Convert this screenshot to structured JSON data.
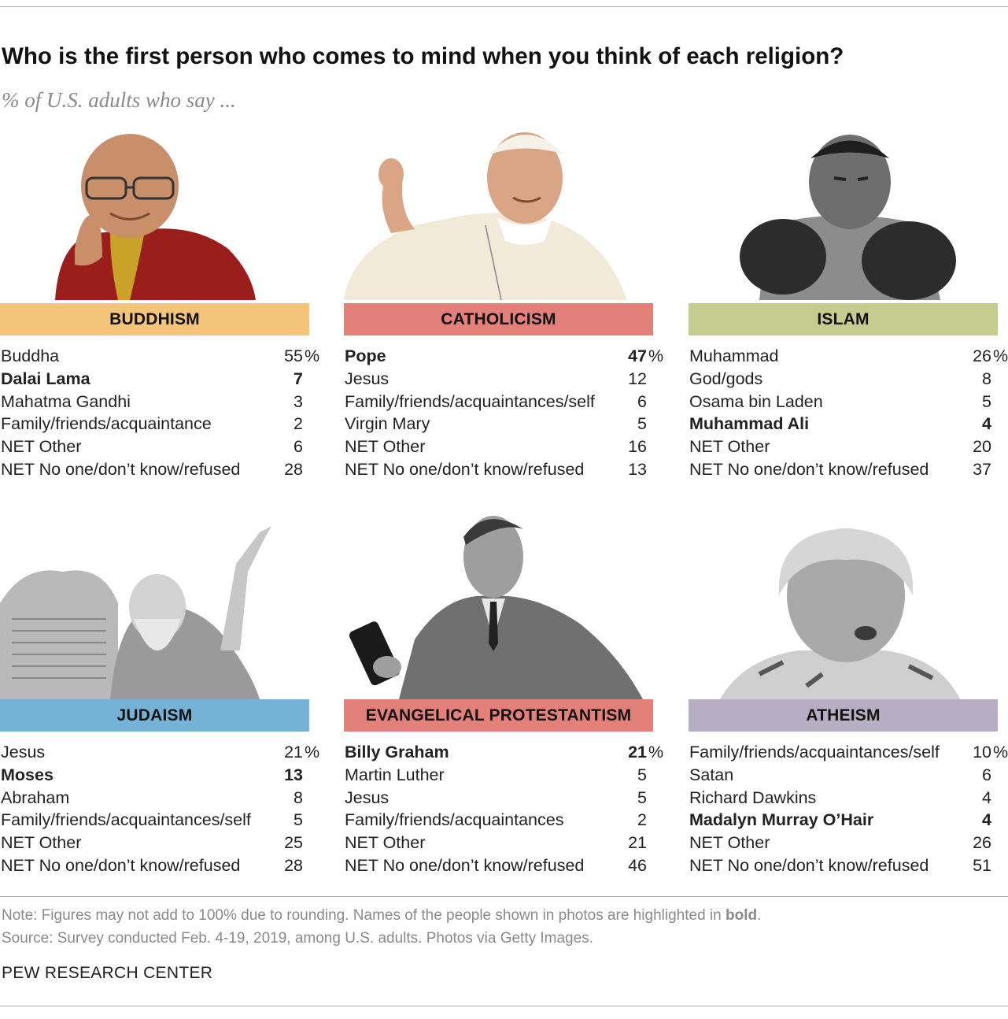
{
  "title": "Who is the first person who comes to mind when you think of each religion?",
  "subtitle": "% of U.S. adults who say ...",
  "colors": {
    "buddhism": "#f4c47b",
    "catholicism": "#e3807a",
    "islam": "#c5cc8d",
    "judaism": "#74b3d6",
    "evangelical": "#e3807a",
    "atheism": "#b7aec3"
  },
  "chart_data": {
    "type": "table",
    "panels": [
      {
        "religion": "BUDDHISM",
        "photo": "dalai-lama-photo",
        "rows": [
          {
            "label": "Buddha",
            "value": "55",
            "pct": "%",
            "bold": false
          },
          {
            "label": "Dalai Lama",
            "value": "7",
            "bold": true
          },
          {
            "label": "Mahatma Gandhi",
            "value": "3",
            "bold": false
          },
          {
            "label": "Family/friends/acquaintance",
            "value": "2",
            "bold": false
          },
          {
            "label": "NET Other",
            "value": "6",
            "bold": false
          },
          {
            "label": "NET No one/don’t know/refused",
            "value": "28",
            "bold": false
          }
        ]
      },
      {
        "religion": "CATHOLICISM",
        "photo": "pope-photo",
        "rows": [
          {
            "label": "Pope",
            "value": "47",
            "pct": "%",
            "bold": true
          },
          {
            "label": "Jesus",
            "value": "12",
            "bold": false
          },
          {
            "label": "Family/friends/acquaintances/self",
            "value": "6",
            "bold": false
          },
          {
            "label": "Virgin Mary",
            "value": "5",
            "bold": false
          },
          {
            "label": "NET Other",
            "value": "16",
            "bold": false
          },
          {
            "label": "NET No one/don’t know/refused",
            "value": "13",
            "bold": false
          }
        ]
      },
      {
        "religion": "ISLAM",
        "photo": "muhammad-ali-photo",
        "rows": [
          {
            "label": "Muhammad",
            "value": "26",
            "pct": "%",
            "bold": false
          },
          {
            "label": "God/gods",
            "value": "8",
            "bold": false
          },
          {
            "label": "Osama bin Laden",
            "value": "5",
            "bold": false
          },
          {
            "label": "Muhammad Ali",
            "value": "4",
            "bold": true
          },
          {
            "label": "NET Other",
            "value": "20",
            "bold": false
          },
          {
            "label": "NET No one/don’t know/refused",
            "value": "37",
            "bold": false
          }
        ]
      },
      {
        "religion": "JUDAISM",
        "photo": "moses-photo",
        "rows": [
          {
            "label": "Jesus",
            "value": "21",
            "pct": "%",
            "bold": false
          },
          {
            "label": "Moses",
            "value": "13",
            "bold": true
          },
          {
            "label": "Abraham",
            "value": "8",
            "bold": false
          },
          {
            "label": "Family/friends/acquaintances/self",
            "value": "5",
            "bold": false
          },
          {
            "label": "NET Other",
            "value": "25",
            "bold": false
          },
          {
            "label": "NET No one/don’t know/refused",
            "value": "28",
            "bold": false
          }
        ]
      },
      {
        "religion": "EVANGELICAL PROTESTANTISM",
        "photo": "billy-graham-photo",
        "rows": [
          {
            "label": "Billy Graham",
            "value": "21",
            "pct": "%",
            "bold": true
          },
          {
            "label": "Martin Luther",
            "value": "5",
            "bold": false
          },
          {
            "label": "Jesus",
            "value": "5",
            "bold": false
          },
          {
            "label": "Family/friends/acquaintances",
            "value": "2",
            "bold": false
          },
          {
            "label": "NET Other",
            "value": "21",
            "bold": false
          },
          {
            "label": "NET No one/don’t know/refused",
            "value": "46",
            "bold": false
          }
        ]
      },
      {
        "religion": "ATHEISM",
        "photo": "madalyn-murray-ohair-photo",
        "rows": [
          {
            "label": "Family/friends/acquaintances/self",
            "value": "10",
            "pct": "%",
            "bold": false
          },
          {
            "label": "Satan",
            "value": "6",
            "bold": false
          },
          {
            "label": "Richard Dawkins",
            "value": "4",
            "bold": false
          },
          {
            "label": "Madalyn Murray O’Hair",
            "value": "4",
            "bold": true
          },
          {
            "label": "NET Other",
            "value": "26",
            "bold": false
          },
          {
            "label": "NET No one/don’t know/refused",
            "value": "51",
            "bold": false
          }
        ]
      }
    ]
  },
  "note": {
    "text": "Note: Figures may not add to 100% due to rounding. Names of the people shown in photos are highlighted in ",
    "bold_word": "bold",
    "end": "."
  },
  "source": "Source: Survey conducted Feb. 4-19, 2019, among U.S. adults. Photos via Getty Images.",
  "brand": "PEW RESEARCH CENTER"
}
